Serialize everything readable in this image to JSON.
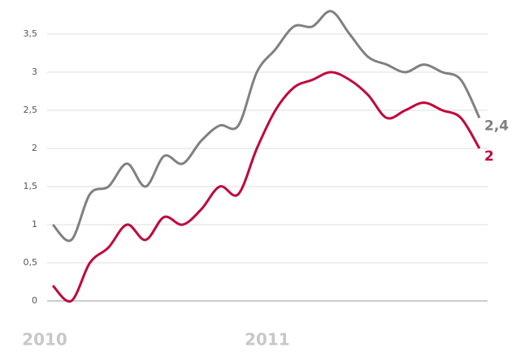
{
  "chart_data": {
    "type": "line",
    "categories": [
      "2010",
      null,
      null,
      null,
      null,
      null,
      null,
      null,
      null,
      null,
      null,
      null,
      "2011",
      null,
      null,
      null,
      null,
      null,
      null,
      null,
      null,
      null,
      null,
      null
    ],
    "series": [
      {
        "name": null,
        "color": "#808080",
        "values": [
          1.0,
          0.8,
          1.4,
          1.5,
          1.8,
          1.5,
          1.9,
          1.8,
          2.1,
          2.3,
          2.3,
          3.0,
          3.3,
          3.6,
          3.6,
          3.8,
          3.5,
          3.2,
          3.1,
          3.0,
          3.1,
          3.0,
          2.9,
          2.4
        ],
        "value_labels": [
          null,
          null,
          null,
          null,
          null,
          null,
          null,
          null,
          null,
          null,
          null,
          null,
          null,
          null,
          null,
          null,
          null,
          null,
          null,
          null,
          null,
          null,
          null,
          "2,4"
        ]
      },
      {
        "name": null,
        "color": "#c0063a",
        "values": [
          0.2,
          0.0,
          0.5,
          0.7,
          1.0,
          0.8,
          1.1,
          1.0,
          1.2,
          1.5,
          1.4,
          2.0,
          2.5,
          2.8,
          2.9,
          3.0,
          2.9,
          2.7,
          2.4,
          2.5,
          2.6,
          2.5,
          2.4,
          2.0
        ],
        "value_labels": [
          null,
          null,
          null,
          null,
          null,
          null,
          null,
          null,
          null,
          null,
          null,
          null,
          null,
          null,
          null,
          null,
          null,
          null,
          null,
          null,
          null,
          null,
          null,
          "2"
        ]
      }
    ],
    "ylim": [
      0,
      3.5
    ],
    "yticks": [
      0,
      {
        "value": 0.5,
        "label": "0,5"
      },
      1,
      {
        "value": 1.5,
        "label": "1,5"
      },
      2,
      {
        "value": 2.5,
        "label": "2,5"
      },
      3,
      {
        "value": 3.5,
        "label": "3,5"
      }
    ],
    "grid": true
  }
}
